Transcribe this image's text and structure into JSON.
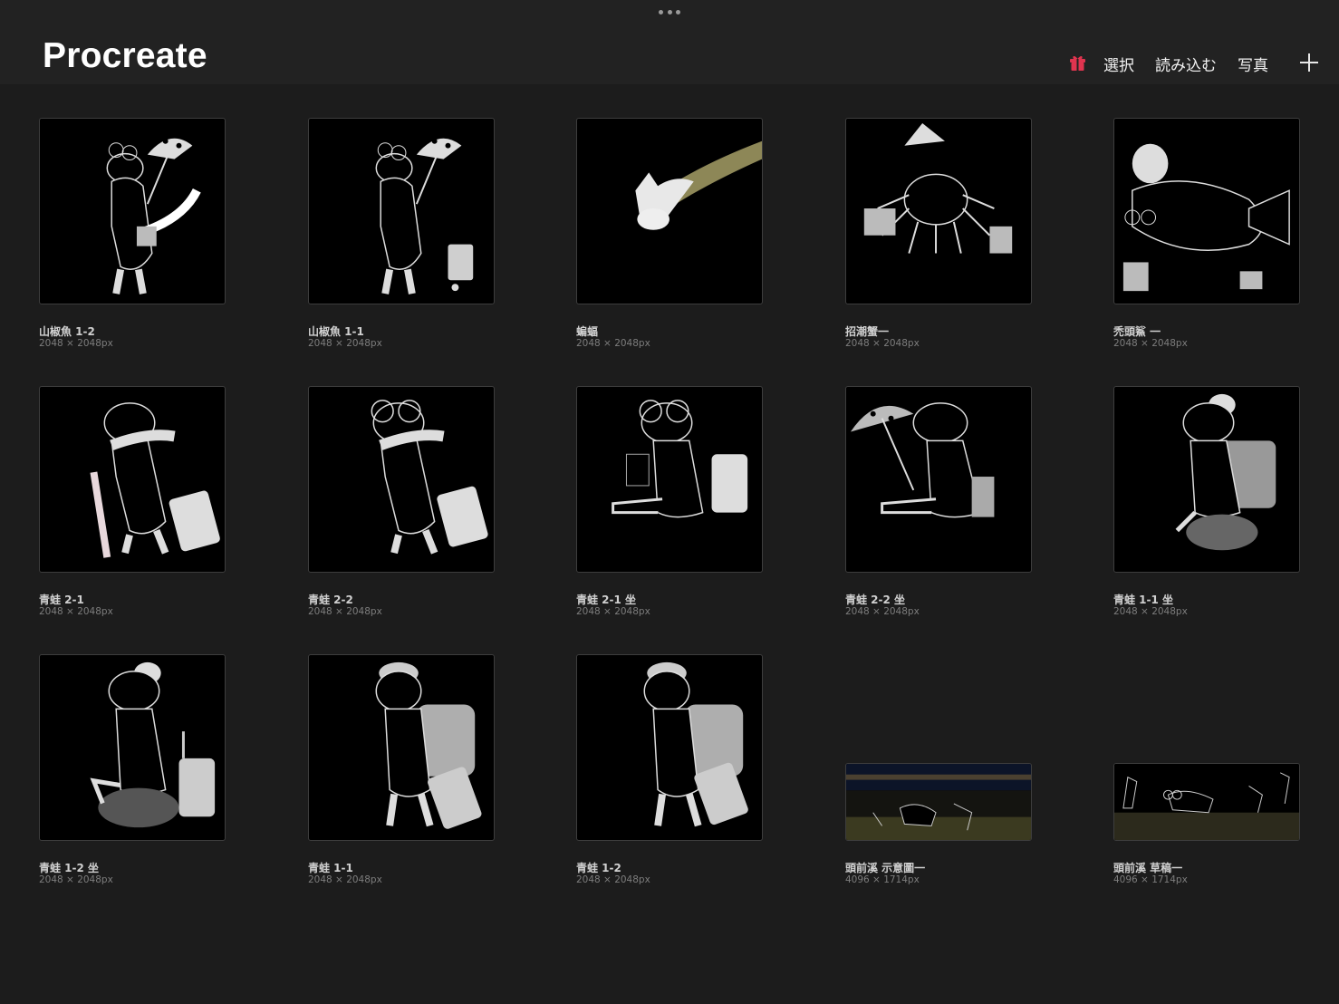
{
  "app": {
    "title": "Procreate"
  },
  "toolbar": {
    "select_label": "選択",
    "import_label": "読み込む",
    "photo_label": "写真",
    "accent": "#e0344f"
  },
  "gallery": [
    {
      "name": "山椒魚 1-2",
      "dims": "2048 × 2048px",
      "art": "salamander-umbrella"
    },
    {
      "name": "山椒魚 1-1",
      "dims": "2048 × 2048px",
      "art": "salamander-umbrella-suitcase"
    },
    {
      "name": "蝙蝠",
      "dims": "2048 × 2048px",
      "art": "bat"
    },
    {
      "name": "招潮蟹一",
      "dims": "2048 × 2048px",
      "art": "crab"
    },
    {
      "name": "禿頭鯊 一",
      "dims": "2048 × 2048px",
      "art": "goby"
    },
    {
      "name": "青蛙 2-1",
      "dims": "2048 × 2048px",
      "art": "frog-cane"
    },
    {
      "name": "青蛙 2-2",
      "dims": "2048 × 2048px",
      "art": "frog-glasses"
    },
    {
      "name": "青蛙 2-1 坐",
      "dims": "2048 × 2048px",
      "art": "frog-sitting-laptop"
    },
    {
      "name": "青蛙 2-2 坐",
      "dims": "2048 × 2048px",
      "art": "frog-sitting-umbrella"
    },
    {
      "name": "青蛙 1-1 坐",
      "dims": "2048 × 2048px",
      "art": "frog-sitting-rock"
    },
    {
      "name": "青蛙 1-2 坐",
      "dims": "2048 × 2048px",
      "art": "frog-rock-suitcase"
    },
    {
      "name": "青蛙 1-1",
      "dims": "2048 × 2048px",
      "art": "frog-backpack"
    },
    {
      "name": "青蛙 1-2",
      "dims": "2048 × 2048px",
      "art": "frog-backpack-2"
    },
    {
      "name": "頭前溪 示意圖一",
      "dims": "4096 × 1714px",
      "art": "river-scene-night"
    },
    {
      "name": "頭前溪 草稿一",
      "dims": "4096 × 1714px",
      "art": "river-scene-draft"
    }
  ]
}
